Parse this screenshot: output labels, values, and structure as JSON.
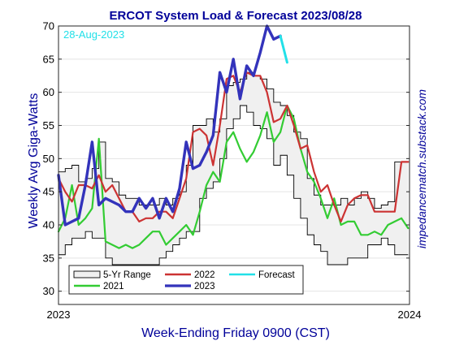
{
  "chart_data": {
    "type": "line",
    "title": "ERCOT System Load & Forecast 2023/08/28",
    "xlabel": "Week-Ending Friday 0900 (CST)",
    "ylabel": "Weekly Avg Giga-Watts",
    "side_label": "impedancematch.substack.com",
    "date_label": "28-Aug-2023",
    "xlim": [
      0,
      52.2
    ],
    "ylim": [
      28,
      70
    ],
    "y_ticks": [
      30,
      35,
      40,
      45,
      50,
      55,
      60,
      65,
      70
    ],
    "x_ticks": [
      {
        "x": 0,
        "label": "2023"
      },
      {
        "x": 52.2,
        "label": "2024"
      }
    ],
    "grid": true,
    "legend": {
      "position": "bottom-left",
      "entries": [
        {
          "label": "5-Yr Range",
          "key": "range"
        },
        {
          "label": "2022",
          "key": "y2022"
        },
        {
          "label": "Forecast",
          "key": "forecast"
        },
        {
          "label": "2021",
          "key": "y2021"
        },
        {
          "label": "2023",
          "key": "y2023"
        }
      ]
    },
    "colors": {
      "y2021": "#33cc33",
      "y2022": "#cc3333",
      "y2023": "#3333bb",
      "forecast": "#22e0e8",
      "range_fill": "#f0f0f0",
      "range_edge": "#000000",
      "title": "#000099"
    },
    "range": {
      "x": [
        0,
        1,
        2,
        3,
        4,
        5,
        6,
        7,
        8,
        9,
        10,
        11,
        12,
        13,
        14,
        15,
        16,
        17,
        18,
        19,
        20,
        21,
        22,
        23,
        24,
        25,
        26,
        27,
        28,
        29,
        30,
        31,
        32,
        33,
        34,
        35,
        36,
        37,
        38,
        39,
        40,
        41,
        42,
        43,
        44,
        45,
        46,
        47,
        48,
        49,
        50,
        51,
        52
      ],
      "max": [
        48,
        48.5,
        49,
        46.5,
        47,
        48.5,
        52.5,
        47,
        46.5,
        44.5,
        44,
        44,
        43,
        43,
        43,
        44,
        43,
        44,
        45,
        49,
        55,
        55,
        56,
        54,
        56,
        61,
        61.5,
        62,
        63,
        62.5,
        62,
        60.5,
        58.5,
        58,
        56.5,
        54,
        53,
        47,
        44.5,
        43,
        43,
        43,
        44,
        43,
        44,
        45,
        44,
        42.5,
        43,
        43.5,
        49.5,
        49.5,
        49.5
      ],
      "min": [
        35.5,
        37,
        38,
        38,
        39,
        38,
        38,
        35,
        34,
        34,
        34,
        34,
        34,
        34,
        34,
        35,
        36,
        37,
        38,
        39,
        39,
        44,
        45.5,
        46.5,
        50,
        54.5,
        56,
        58,
        57,
        55,
        54.5,
        53,
        49,
        50.5,
        47.5,
        44,
        41,
        38.5,
        37,
        36,
        34,
        34,
        34,
        35,
        35,
        35,
        37,
        37,
        38,
        37,
        35.5,
        35.5,
        35.5
      ]
    },
    "series": [
      {
        "key": "y2021",
        "name": "2021",
        "x": [
          0,
          1,
          2,
          3,
          4,
          5,
          6,
          7,
          8,
          9,
          10,
          11,
          12,
          13,
          14,
          15,
          16,
          17,
          18,
          19,
          20,
          21,
          22,
          23,
          24,
          25,
          26,
          27,
          28,
          29,
          30,
          31,
          32,
          33,
          34,
          35,
          36,
          37,
          38,
          39,
          40,
          41,
          42,
          43,
          44,
          45,
          46,
          47,
          48,
          49,
          50,
          51,
          52
        ],
        "y": [
          39,
          41,
          46,
          40,
          41,
          42.5,
          53,
          37.5,
          37,
          36.5,
          37,
          36.5,
          37,
          38,
          39,
          39,
          37,
          38,
          39,
          40,
          38.5,
          42,
          46,
          48,
          46.5,
          52.5,
          54,
          51.5,
          49.5,
          51,
          53.5,
          57,
          52.5,
          54,
          58,
          56,
          51.5,
          48,
          46.5,
          44,
          41,
          44,
          40,
          40.5,
          40.5,
          38.5,
          38.5,
          39,
          38.5,
          40,
          40.5,
          41,
          39.5
        ]
      },
      {
        "key": "y2022",
        "name": "2022",
        "x": [
          0,
          1,
          2,
          3,
          4,
          5,
          6,
          7,
          8,
          9,
          10,
          11,
          12,
          13,
          14,
          15,
          16,
          17,
          18,
          19,
          20,
          21,
          22,
          23,
          24,
          25,
          26,
          27,
          28,
          29,
          30,
          31,
          32,
          33,
          34,
          35,
          36,
          37,
          38,
          39,
          40,
          41,
          42,
          43,
          44,
          45,
          46,
          47,
          48,
          49,
          50,
          51,
          52
        ],
        "y": [
          47,
          45,
          43.5,
          46,
          46,
          45.5,
          47.5,
          45,
          46,
          44,
          42,
          42,
          40.5,
          41,
          41,
          42,
          42,
          41,
          44,
          47,
          54,
          54.5,
          53.5,
          49,
          55,
          62,
          62.5,
          60,
          63,
          62.5,
          62.5,
          60,
          55.5,
          56,
          58,
          55,
          51.5,
          52,
          48,
          45,
          46,
          43,
          40.5,
          43,
          44,
          44.5,
          44.5,
          42,
          42,
          42,
          42,
          49.5,
          49.5
        ]
      },
      {
        "key": "y2023",
        "name": "2023",
        "x": [
          0,
          1,
          2,
          3,
          4,
          5,
          6,
          7,
          8,
          9,
          10,
          11,
          12,
          13,
          14,
          15,
          16,
          17,
          18,
          19,
          20,
          21,
          22,
          23,
          24,
          25,
          26,
          27,
          28,
          29,
          30,
          31,
          32,
          33
        ],
        "y": [
          47.5,
          40,
          40.5,
          41,
          46,
          52.5,
          43,
          44,
          43.5,
          43,
          42,
          42,
          44,
          42.5,
          44,
          41,
          44,
          42,
          45.5,
          52.5,
          48.5,
          49,
          51,
          53.5,
          63,
          60,
          65,
          59,
          64,
          62.5,
          66,
          70,
          68,
          68.5
        ]
      },
      {
        "key": "forecast",
        "name": "Forecast",
        "x": [
          33,
          34
        ],
        "y": [
          68.5,
          64.5
        ]
      }
    ]
  }
}
